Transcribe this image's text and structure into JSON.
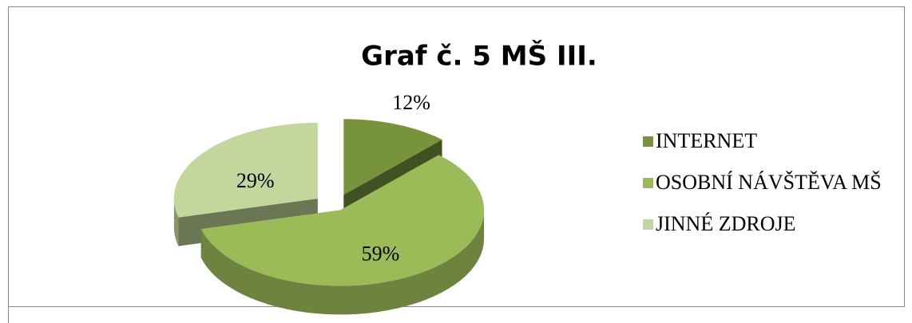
{
  "chart_data": {
    "type": "pie",
    "title": "Graf č. 5 MŠ III.",
    "categories": [
      "INTERNET",
      "OSOBNÍ NÁVŠTĚVA MŠ",
      "JINNÉ ZDROJE"
    ],
    "values": [
      12,
      59,
      29
    ],
    "value_labels": [
      "12%",
      "59%",
      "29%"
    ],
    "colors": [
      "#77933c",
      "#9bbb59",
      "#c3d69b"
    ],
    "legend": "right"
  }
}
